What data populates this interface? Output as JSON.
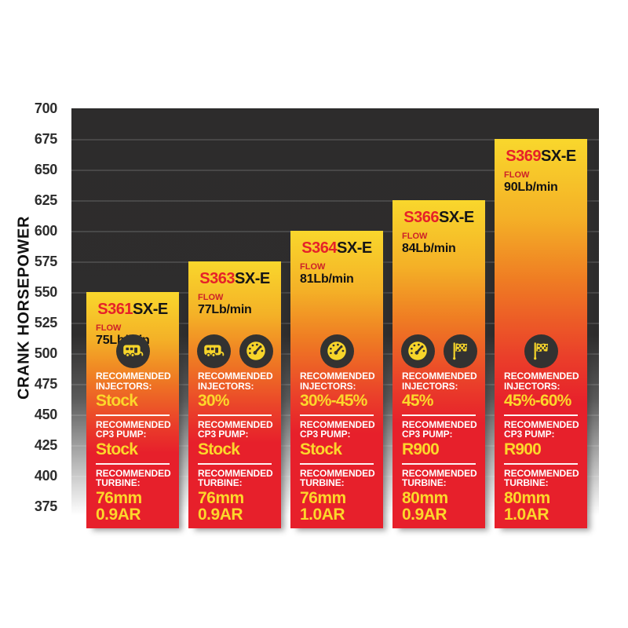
{
  "chart_data": {
    "type": "bar",
    "title": "",
    "xlabel": "",
    "ylabel": "CRANK HORSEPOWER",
    "ylim": [
      375,
      700
    ],
    "yticks": [
      700,
      675,
      650,
      625,
      600,
      575,
      550,
      525,
      500,
      475,
      450,
      425,
      400,
      375
    ],
    "grid": "horizontal",
    "legend": "none",
    "categories": [
      "S361SX-E",
      "S363SX-E",
      "S364SX-E",
      "S366SX-E",
      "S369SX-E"
    ],
    "values": [
      550,
      575,
      600,
      625,
      675
    ],
    "bars": [
      {
        "model_prefix": "S361",
        "model_suffix": "SX-E",
        "flow_label": "FLOW",
        "flow_value": "75Lb/min",
        "crank_horsepower": 550,
        "icons": [
          "camper-icon"
        ],
        "injectors_label": "RECOMMENDED INJECTORS:",
        "injectors_value": "Stock",
        "pump_label": "RECOMMENDED CP3 PUMP:",
        "pump_value": "Stock",
        "turbine_label": "RECOMMENDED TURBINE:",
        "turbine_size": "76mm",
        "turbine_ar": "0.9AR"
      },
      {
        "model_prefix": "S363",
        "model_suffix": "SX-E",
        "flow_label": "FLOW",
        "flow_value": "77Lb/min",
        "crank_horsepower": 575,
        "icons": [
          "camper-icon",
          "gauge-icon"
        ],
        "injectors_label": "RECOMMENDED INJECTORS:",
        "injectors_value": "30%",
        "pump_label": "RECOMMENDED CP3 PUMP:",
        "pump_value": "Stock",
        "turbine_label": "RECOMMENDED TURBINE:",
        "turbine_size": "76mm",
        "turbine_ar": "0.9AR"
      },
      {
        "model_prefix": "S364",
        "model_suffix": "SX-E",
        "flow_label": "FLOW",
        "flow_value": "81Lb/min",
        "crank_horsepower": 600,
        "icons": [
          "gauge-icon"
        ],
        "injectors_label": "RECOMMENDED INJECTORS:",
        "injectors_value": "30%-45%",
        "pump_label": "RECOMMENDED CP3 PUMP:",
        "pump_value": "Stock",
        "turbine_label": "RECOMMENDED TURBINE:",
        "turbine_size": "76mm",
        "turbine_ar": "1.0AR"
      },
      {
        "model_prefix": "S366",
        "model_suffix": "SX-E",
        "flow_label": "FLOW",
        "flow_value": "84Lb/min",
        "crank_horsepower": 625,
        "icons": [
          "gauge-icon",
          "flag-icon"
        ],
        "injectors_label": "RECOMMENDED INJECTORS:",
        "injectors_value": "45%",
        "pump_label": "RECOMMENDED CP3 PUMP:",
        "pump_value": "R900",
        "turbine_label": "RECOMMENDED TURBINE:",
        "turbine_size": "80mm",
        "turbine_ar": "0.9AR"
      },
      {
        "model_prefix": "S369",
        "model_suffix": "SX-E",
        "flow_label": "FLOW",
        "flow_value": "90Lb/min",
        "crank_horsepower": 675,
        "icons": [
          "flag-icon"
        ],
        "injectors_label": "RECOMMENDED INJECTORS:",
        "injectors_value": "45%-60%",
        "pump_label": "RECOMMENDED CP3 PUMP:",
        "pump_value": "R900",
        "turbine_label": "RECOMMENDED TURBINE:",
        "turbine_size": "80mm",
        "turbine_ar": "1.0AR"
      }
    ],
    "colors": {
      "bar_gradient_top": "#f9d72c",
      "bar_gradient_mid": "#ef7d23",
      "bar_gradient_bottom": "#e7202b",
      "model_accent_red": "#e62129",
      "value_yellow": "#fcd72b",
      "plot_background_dark": "#2d2c2c",
      "icon_circle_dark": "#333231",
      "label_white": "#ffffff"
    }
  }
}
